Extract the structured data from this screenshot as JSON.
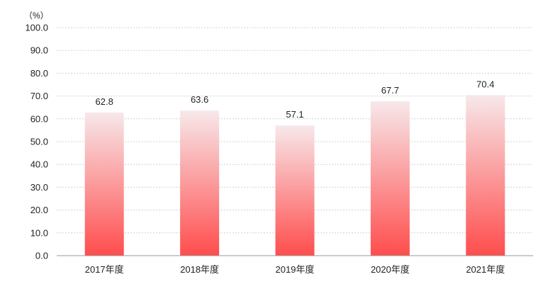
{
  "chart_data": {
    "type": "bar",
    "unit_label": "（%）",
    "categories": [
      "2017年度",
      "2018年度",
      "2019年度",
      "2020年度",
      "2021年度"
    ],
    "values": [
      62.8,
      63.6,
      57.1,
      67.7,
      70.4
    ],
    "value_labels": [
      "62.8",
      "63.6",
      "57.1",
      "67.7",
      "70.4"
    ],
    "y_ticks": [
      "0.0",
      "10.0",
      "20.0",
      "30.0",
      "40.0",
      "50.0",
      "60.0",
      "70.0",
      "80.0",
      "90.0",
      "100.0"
    ],
    "ylim": [
      0,
      100
    ],
    "grid": true,
    "legend": "none",
    "colors": {
      "bar_bottom": "#ff4d4d",
      "bar_top": "#f7e8ea",
      "grid": "#d0d0d0",
      "axis": "#999999"
    }
  }
}
